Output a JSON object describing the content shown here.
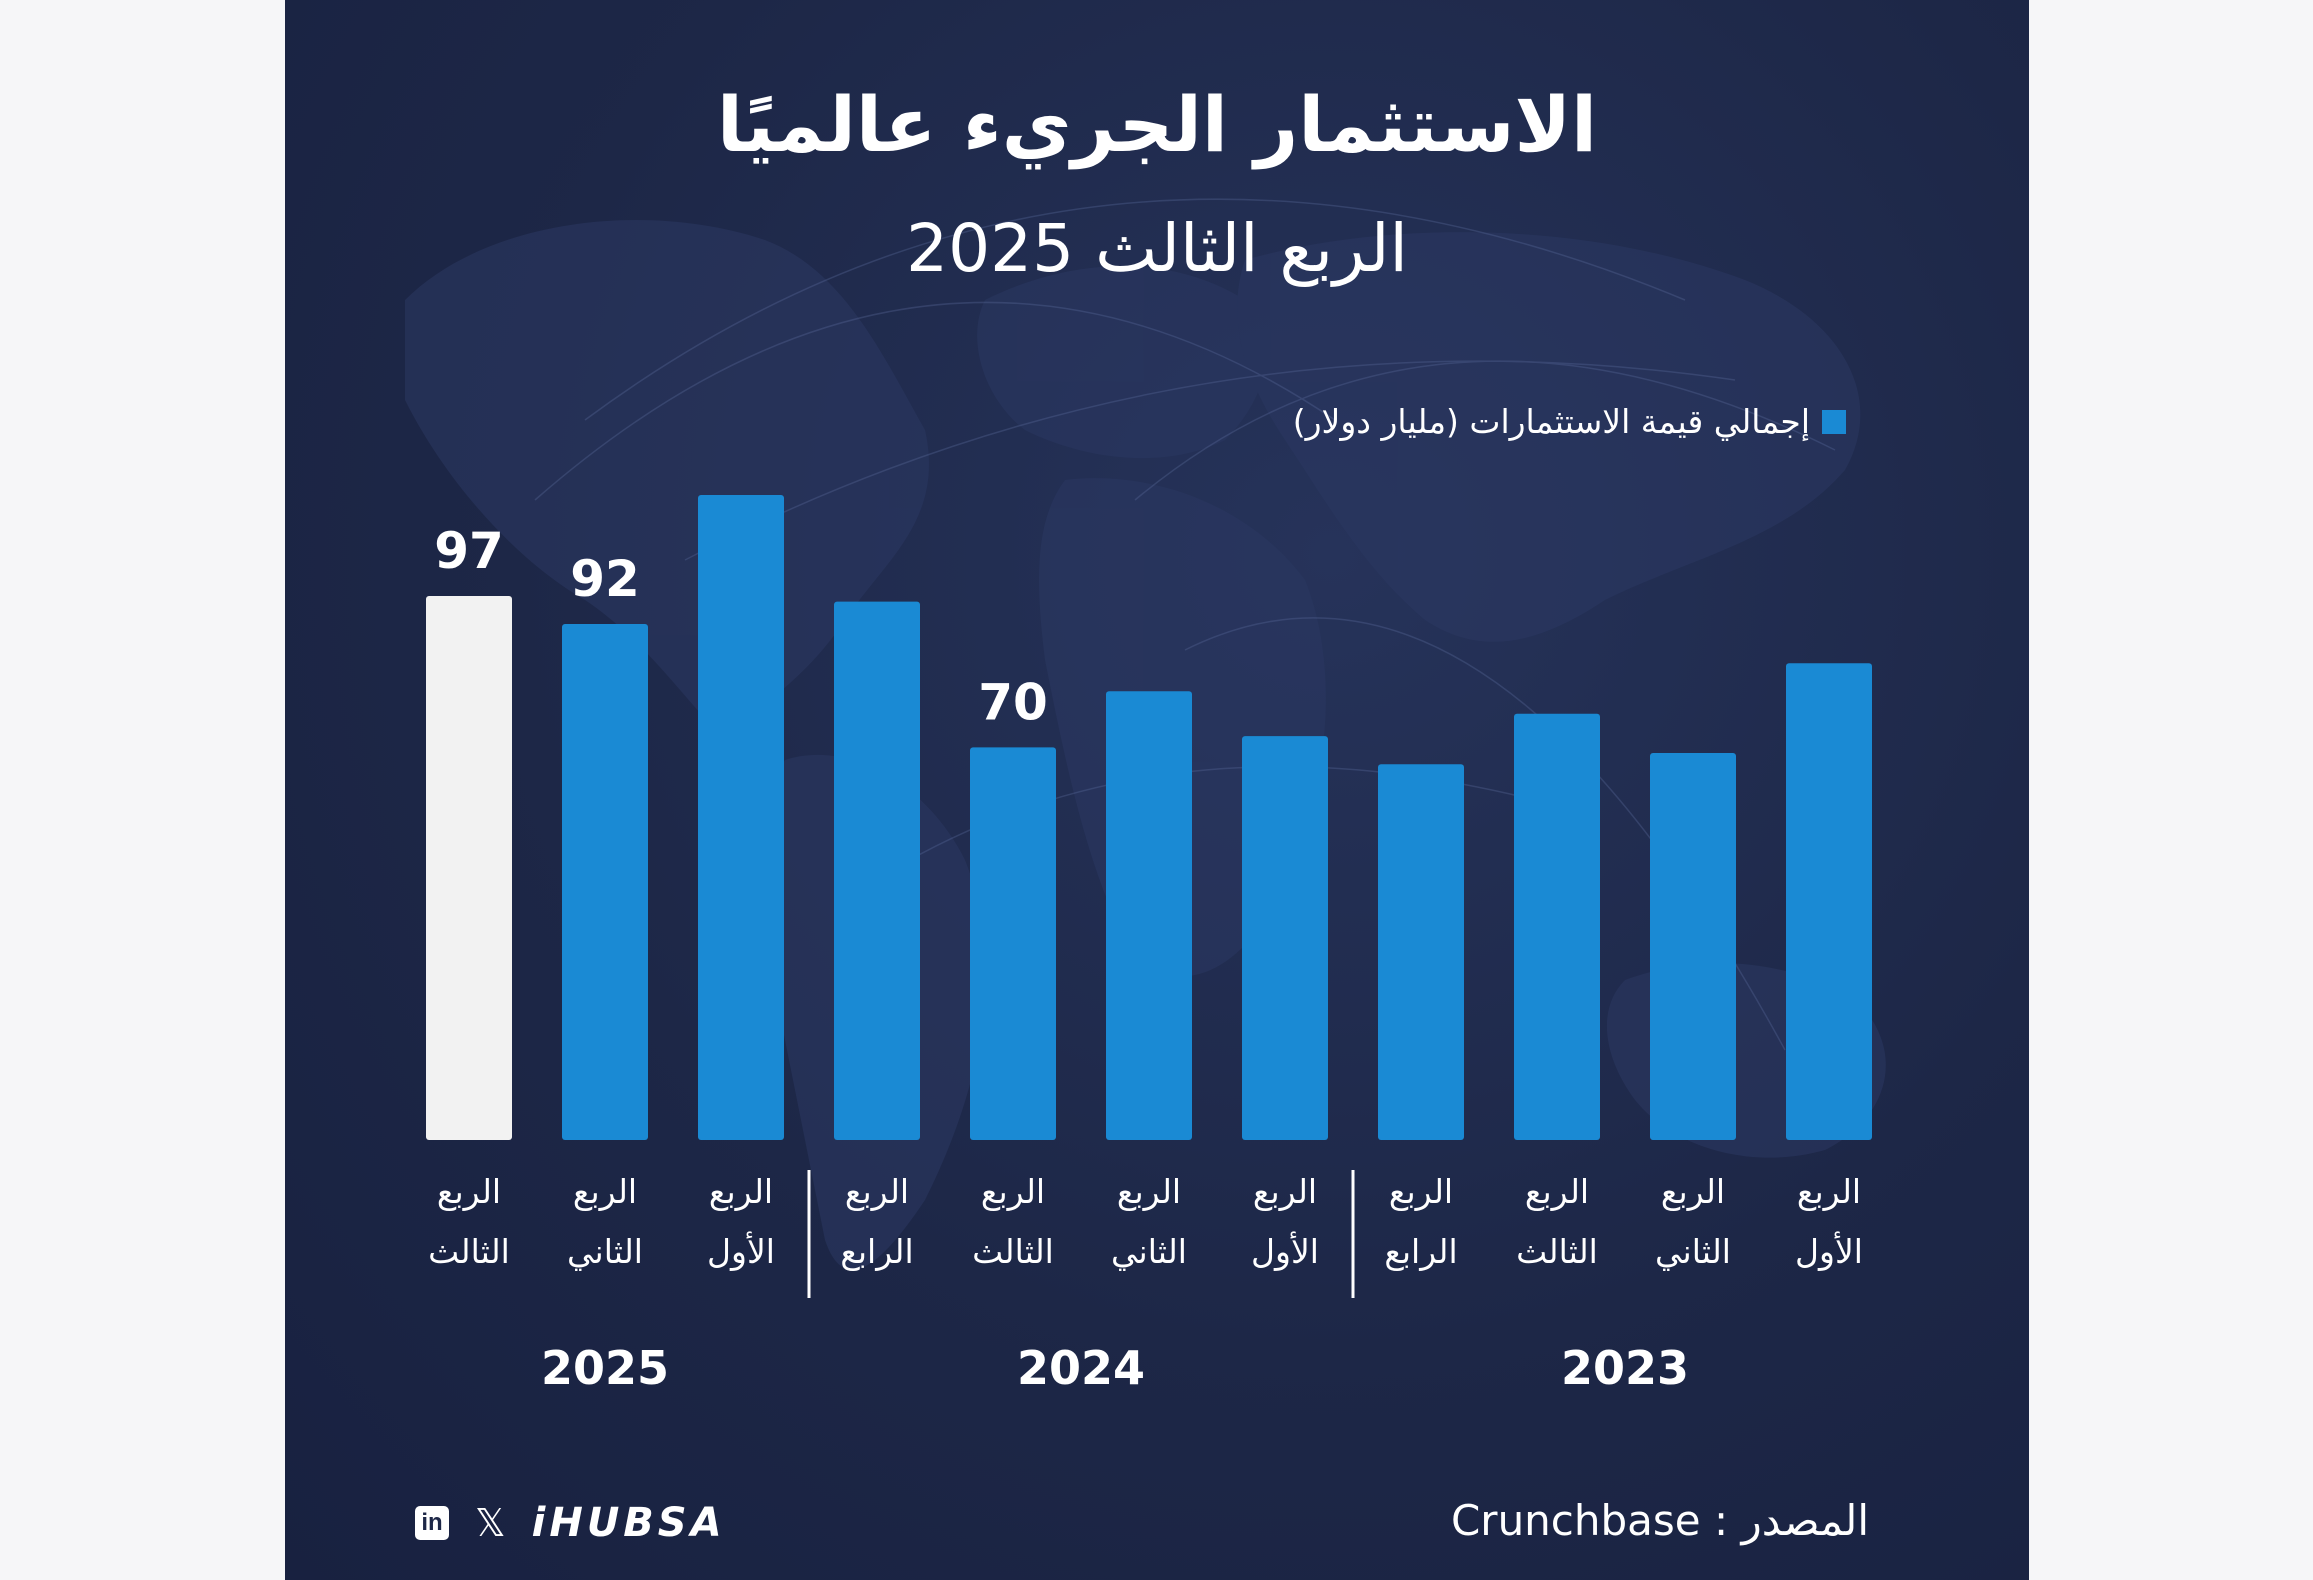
{
  "header": {
    "title": "الاستثمار الجريء عالميًا",
    "subtitle": "الربع الثالث 2025"
  },
  "legend": {
    "label": "إجمالي قيمة الاستثمارات (مليار دولار)",
    "color": "#1a8ad4"
  },
  "colors": {
    "background": "#1d2747",
    "bar": "#1a8ad4",
    "highlight_bar": "#f2f2f2",
    "text": "#ffffff"
  },
  "chart_data": {
    "type": "bar",
    "direction": "rtl",
    "unit": "مليار دولار",
    "categories": [
      [
        "الربع",
        "الأول"
      ],
      [
        "الربع",
        "الثاني"
      ],
      [
        "الربع",
        "الثالث"
      ],
      [
        "الربع",
        "الرابع"
      ],
      [
        "الربع",
        "الأول"
      ],
      [
        "الربع",
        "الثاني"
      ],
      [
        "الربع",
        "الثالث"
      ],
      [
        "الربع",
        "الرابع"
      ],
      [
        "الربع",
        "الأول"
      ],
      [
        "الربع",
        "الثاني"
      ],
      [
        "الربع",
        "الثالث"
      ]
    ],
    "values": [
      85,
      69,
      76,
      67,
      72,
      80,
      70,
      96,
      115,
      92,
      97
    ],
    "value_labels": [
      "",
      "",
      "",
      "",
      "",
      "",
      "70",
      "",
      "",
      "92",
      "97"
    ],
    "highlight_index": 10,
    "groups": [
      {
        "label": "2023",
        "count": 4
      },
      {
        "label": "2024",
        "count": 4
      },
      {
        "label": "2025",
        "count": 3
      }
    ],
    "ylim": [
      0,
      115
    ],
    "grid": false
  },
  "footer": {
    "source": "المصدر : Crunchbase",
    "brand": "iHUBSA",
    "icons": [
      "linkedin-icon",
      "x-icon"
    ]
  }
}
